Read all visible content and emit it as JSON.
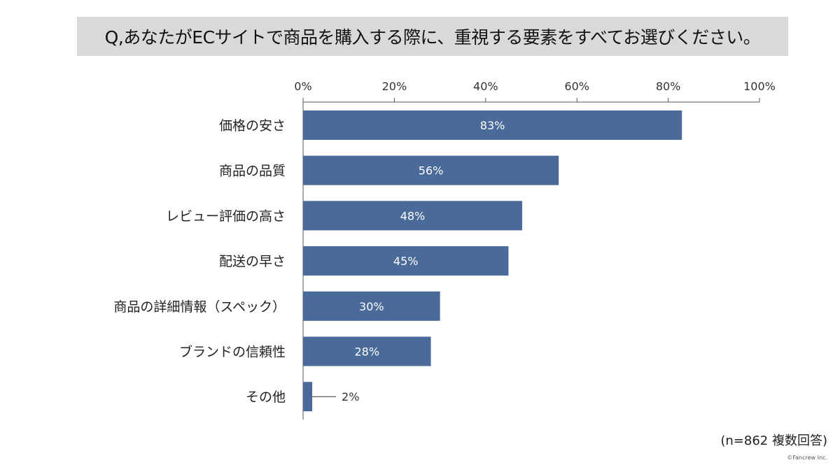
{
  "chart_data": {
    "type": "bar",
    "orientation": "horizontal",
    "title": "Q,あなたがECサイトで商品を購入する際に、重視する要素をすべてお選びください。",
    "categories": [
      "価格の安さ",
      "商品の品質",
      "レビュー評価の高さ",
      "配送の早さ",
      "商品の詳細情報（スペック）",
      "ブランドの信頼性",
      "その他"
    ],
    "values": [
      83,
      56,
      48,
      45,
      30,
      28,
      2
    ],
    "data_labels": [
      "83%",
      "56%",
      "48%",
      "45%",
      "30%",
      "28%",
      "2%"
    ],
    "xlim": [
      0,
      100
    ],
    "x_ticks": [
      "0%",
      "20%",
      "40%",
      "60%",
      "80%",
      "100%"
    ],
    "x_axis_position": "top",
    "grid": false,
    "bar_color": "#4a6a9a",
    "title_bg_color": "#d9d9d9"
  },
  "note": "(n=862 複数回答)",
  "credit": "©Fancrew Inc."
}
